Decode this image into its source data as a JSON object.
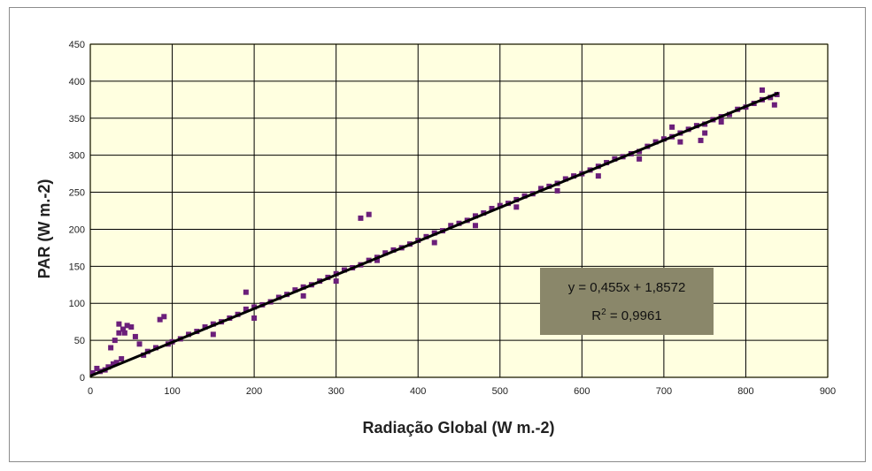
{
  "colors": {
    "plot_bg": "#ffffe0",
    "plot_border": "#b8b86a",
    "grid": "#000000",
    "points": "#6b1f7a",
    "trendline": "#000000",
    "annotation_bg": "#8a876a"
  },
  "annotation": {
    "equation": "y = 0,455x + 1,8572",
    "r2_prefix": "R",
    "r2_sup": "2",
    "r2_value": " = 0,9961"
  },
  "chart_data": {
    "type": "scatter",
    "title": "",
    "xlabel": "Radiação Global (W m.-2)",
    "ylabel": "PAR (W m.-2)",
    "xlim": [
      0,
      900
    ],
    "ylim": [
      0,
      450
    ],
    "xticks": [
      0,
      100,
      200,
      300,
      400,
      500,
      600,
      700,
      800,
      900
    ],
    "yticks": [
      0,
      50,
      100,
      150,
      200,
      250,
      300,
      350,
      400,
      450
    ],
    "grid": true,
    "legend": "none",
    "trendline": {
      "slope": 0.455,
      "intercept": 1.8572,
      "x_range": [
        0,
        840
      ]
    },
    "series": [
      {
        "points": [
          [
            3,
            6
          ],
          [
            8,
            12
          ],
          [
            12,
            8
          ],
          [
            18,
            10
          ],
          [
            22,
            14
          ],
          [
            28,
            18
          ],
          [
            32,
            20
          ],
          [
            38,
            25
          ],
          [
            25,
            40
          ],
          [
            30,
            50
          ],
          [
            35,
            60
          ],
          [
            40,
            65
          ],
          [
            45,
            70
          ],
          [
            50,
            68
          ],
          [
            55,
            55
          ],
          [
            35,
            72
          ],
          [
            42,
            60
          ],
          [
            60,
            45
          ],
          [
            65,
            30
          ],
          [
            70,
            35
          ],
          [
            80,
            40
          ],
          [
            85,
            78
          ],
          [
            90,
            82
          ],
          [
            95,
            45
          ],
          [
            100,
            48
          ],
          [
            110,
            52
          ],
          [
            120,
            58
          ],
          [
            130,
            62
          ],
          [
            140,
            68
          ],
          [
            150,
            72
          ],
          [
            160,
            75
          ],
          [
            170,
            80
          ],
          [
            180,
            85
          ],
          [
            190,
            92
          ],
          [
            200,
            95
          ],
          [
            210,
            98
          ],
          [
            220,
            102
          ],
          [
            230,
            108
          ],
          [
            240,
            112
          ],
          [
            250,
            118
          ],
          [
            260,
            122
          ],
          [
            270,
            125
          ],
          [
            280,
            130
          ],
          [
            290,
            135
          ],
          [
            300,
            140
          ],
          [
            310,
            145
          ],
          [
            320,
            148
          ],
          [
            330,
            152
          ],
          [
            340,
            158
          ],
          [
            350,
            162
          ],
          [
            360,
            168
          ],
          [
            370,
            172
          ],
          [
            380,
            175
          ],
          [
            390,
            180
          ],
          [
            400,
            185
          ],
          [
            410,
            190
          ],
          [
            420,
            195
          ],
          [
            430,
            198
          ],
          [
            440,
            205
          ],
          [
            450,
            208
          ],
          [
            460,
            212
          ],
          [
            470,
            218
          ],
          [
            480,
            222
          ],
          [
            490,
            228
          ],
          [
            500,
            232
          ],
          [
            510,
            235
          ],
          [
            520,
            240
          ],
          [
            530,
            245
          ],
          [
            540,
            248
          ],
          [
            550,
            255
          ],
          [
            560,
            258
          ],
          [
            570,
            262
          ],
          [
            580,
            268
          ],
          [
            590,
            272
          ],
          [
            600,
            275
          ],
          [
            610,
            280
          ],
          [
            620,
            285
          ],
          [
            630,
            290
          ],
          [
            640,
            295
          ],
          [
            650,
            298
          ],
          [
            660,
            302
          ],
          [
            670,
            305
          ],
          [
            680,
            312
          ],
          [
            690,
            318
          ],
          [
            700,
            322
          ],
          [
            710,
            325
          ],
          [
            720,
            330
          ],
          [
            730,
            335
          ],
          [
            740,
            340
          ],
          [
            750,
            342
          ],
          [
            760,
            348
          ],
          [
            770,
            352
          ],
          [
            780,
            355
          ],
          [
            790,
            362
          ],
          [
            800,
            365
          ],
          [
            810,
            370
          ],
          [
            820,
            375
          ],
          [
            830,
            378
          ],
          [
            838,
            382
          ],
          [
            330,
            215
          ],
          [
            340,
            220
          ],
          [
            190,
            115
          ],
          [
            710,
            338
          ],
          [
            820,
            388
          ],
          [
            835,
            368
          ],
          [
            745,
            320
          ],
          [
            750,
            330
          ],
          [
            150,
            58
          ],
          [
            200,
            80
          ],
          [
            260,
            110
          ],
          [
            300,
            130
          ],
          [
            350,
            158
          ],
          [
            420,
            182
          ],
          [
            470,
            205
          ],
          [
            520,
            230
          ],
          [
            570,
            252
          ],
          [
            620,
            272
          ],
          [
            670,
            295
          ],
          [
            720,
            318
          ],
          [
            770,
            345
          ]
        ]
      }
    ]
  }
}
